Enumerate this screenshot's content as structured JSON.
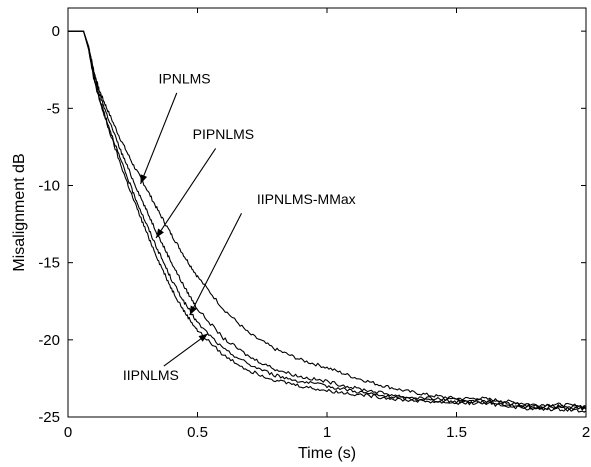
{
  "chart_data": {
    "type": "line",
    "title": "",
    "xlabel": "Time (s)",
    "ylabel": "Misalignment dB",
    "xlim": [
      0,
      2
    ],
    "ylim": [
      -25,
      1.5
    ],
    "grid": false,
    "legend": "none",
    "xticks": [
      0,
      0.5,
      1,
      1.5,
      2
    ],
    "xtick_labels": [
      "0",
      "0.5",
      "1",
      "1.5",
      "2"
    ],
    "yticks": [
      0,
      -5,
      -10,
      -15,
      -20,
      -25
    ],
    "ytick_labels": [
      "0",
      "-5",
      "-10",
      "-15",
      "-20",
      "-25"
    ],
    "series": [
      {
        "name": "IPNLMS",
        "x": [
          0,
          0.06,
          0.08,
          0.1,
          0.12,
          0.15,
          0.2,
          0.25,
          0.3,
          0.35,
          0.4,
          0.45,
          0.5,
          0.6,
          0.7,
          0.8,
          0.9,
          1.0,
          1.1,
          1.2,
          1.3,
          1.4,
          1.5,
          1.6,
          1.7,
          1.8,
          1.9,
          2.0
        ],
        "y": [
          0,
          0,
          -1.0,
          -2.6,
          -3.8,
          -5.0,
          -6.9,
          -8.6,
          -10.1,
          -11.7,
          -13.2,
          -14.6,
          -15.9,
          -18.0,
          -19.6,
          -20.6,
          -21.3,
          -21.8,
          -22.4,
          -22.9,
          -23.3,
          -23.6,
          -23.8,
          -23.8,
          -24.0,
          -24.2,
          -24.2,
          -24.3
        ]
      },
      {
        "name": "PIPNLMS",
        "x": [
          0,
          0.06,
          0.08,
          0.1,
          0.12,
          0.15,
          0.2,
          0.25,
          0.3,
          0.35,
          0.4,
          0.45,
          0.5,
          0.6,
          0.7,
          0.8,
          0.9,
          1.0,
          1.1,
          1.2,
          1.3,
          1.4,
          1.5,
          1.6,
          1.7,
          1.8,
          1.9,
          2.0
        ],
        "y": [
          0,
          0,
          -1.1,
          -2.8,
          -4.0,
          -5.4,
          -7.6,
          -9.6,
          -11.5,
          -13.3,
          -15.0,
          -16.6,
          -18.0,
          -19.9,
          -21.1,
          -21.9,
          -22.4,
          -22.7,
          -23.1,
          -23.4,
          -23.7,
          -23.8,
          -23.9,
          -23.9,
          -24.1,
          -24.3,
          -24.3,
          -24.4
        ]
      },
      {
        "name": "IIPNLMS-MMax",
        "x": [
          0,
          0.06,
          0.08,
          0.1,
          0.12,
          0.15,
          0.2,
          0.25,
          0.3,
          0.35,
          0.4,
          0.45,
          0.5,
          0.6,
          0.7,
          0.8,
          0.9,
          1.0,
          1.1,
          1.2,
          1.3,
          1.4,
          1.5,
          1.6,
          1.7,
          1.8,
          1.9,
          2.0
        ],
        "y": [
          0,
          0,
          -1.2,
          -3.0,
          -4.3,
          -5.8,
          -8.2,
          -10.4,
          -12.4,
          -14.3,
          -16.1,
          -17.6,
          -18.9,
          -20.6,
          -21.6,
          -22.3,
          -22.7,
          -23.0,
          -23.3,
          -23.6,
          -23.8,
          -23.9,
          -24.0,
          -24.0,
          -24.2,
          -24.4,
          -24.4,
          -24.5
        ]
      },
      {
        "name": "IIPNLMS",
        "x": [
          0,
          0.06,
          0.08,
          0.1,
          0.12,
          0.15,
          0.2,
          0.25,
          0.3,
          0.35,
          0.4,
          0.45,
          0.5,
          0.6,
          0.7,
          0.8,
          0.9,
          1.0,
          1.1,
          1.2,
          1.3,
          1.4,
          1.5,
          1.6,
          1.7,
          1.8,
          1.9,
          2.0
        ],
        "y": [
          0,
          0,
          -1.2,
          -3.1,
          -4.4,
          -6.0,
          -8.5,
          -10.8,
          -12.9,
          -14.9,
          -16.7,
          -18.2,
          -19.4,
          -21.0,
          -22.0,
          -22.6,
          -23.0,
          -23.3,
          -23.5,
          -23.7,
          -23.9,
          -24.0,
          -24.1,
          -24.1,
          -24.3,
          -24.5,
          -24.5,
          -24.6
        ]
      }
    ],
    "annotations": [
      {
        "text": "IPNLMS",
        "label_x": 0.45,
        "label_y": -3.4,
        "arrow_from": [
          0.42,
          -4.0
        ],
        "arrow_to": [
          0.28,
          -9.9
        ]
      },
      {
        "text": "PIPNLMS",
        "label_x": 0.6,
        "label_y": -7.0,
        "arrow_from": [
          0.57,
          -7.6
        ],
        "arrow_to": [
          0.34,
          -13.4
        ]
      },
      {
        "text": "IIPNLMS-MMax",
        "label_x": 0.92,
        "label_y": -11.2,
        "arrow_from": [
          0.67,
          -11.8
        ],
        "arrow_to": [
          0.47,
          -18.4
        ]
      },
      {
        "text": "IIPNLMS",
        "label_x": 0.32,
        "label_y": -22.6,
        "arrow_from": [
          0.37,
          -21.7
        ],
        "arrow_to": [
          0.54,
          -19.6
        ]
      }
    ]
  }
}
